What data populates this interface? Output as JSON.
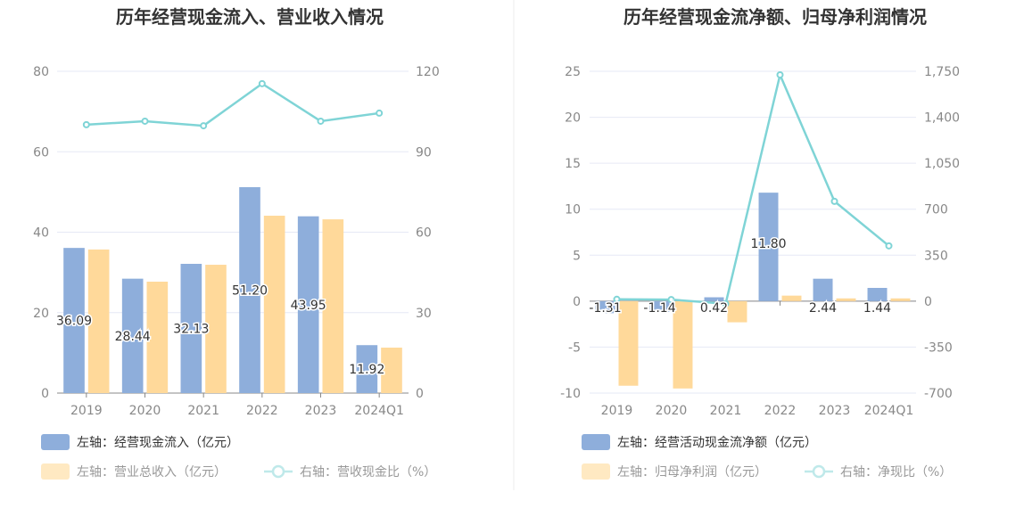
{
  "colors": {
    "bar1": "#8eaedb",
    "bar2": "#ffd99a",
    "line": "#7fd4d6",
    "grid": "#e6e9f5",
    "axis": "#888888"
  },
  "chart_data": [
    {
      "type": "bar+line",
      "title": "历年经营现金流入、营业收入情况",
      "categories": [
        "2019",
        "2020",
        "2021",
        "2022",
        "2023",
        "2024Q1"
      ],
      "yleft": {
        "range": [
          0,
          80
        ],
        "ticks": [
          "0",
          "20",
          "40",
          "60",
          "80"
        ]
      },
      "yright": {
        "range": [
          0,
          120
        ],
        "ticks": [
          "0",
          "30",
          "60",
          "90",
          "120"
        ]
      },
      "grid": true,
      "legend_placement": "bottom",
      "series": [
        {
          "name": "左轴：经营现金流入（亿元）",
          "kind": "bar",
          "axis": "left",
          "values": [
            36.09,
            28.44,
            32.13,
            51.2,
            43.95,
            11.92
          ],
          "labels": [
            "36.09",
            "28.44",
            "32.13",
            "51.20",
            "43.95",
            "11.92"
          ]
        },
        {
          "name": "左轴：营业总收入（亿元）",
          "kind": "bar",
          "axis": "left",
          "values": [
            35.7,
            27.7,
            31.9,
            44.1,
            43.2,
            11.3
          ]
        },
        {
          "name": "右轴：营收现金比（%）",
          "kind": "line",
          "axis": "right",
          "values": [
            100.1,
            101.4,
            99.7,
            115.4,
            101.4,
            104.4
          ]
        }
      ]
    },
    {
      "type": "bar+line",
      "title": "历年经营现金流净额、归母净利润情况",
      "categories": [
        "2019",
        "2020",
        "2021",
        "2022",
        "2023",
        "2024Q1"
      ],
      "yleft": {
        "range": [
          -10,
          25
        ],
        "ticks": [
          "-10",
          "-5",
          "0",
          "5",
          "10",
          "15",
          "20",
          "25"
        ]
      },
      "yright": {
        "range": [
          -700,
          1750
        ],
        "ticks": [
          "-700",
          "-350",
          "0",
          "350",
          "700",
          "1,050",
          "1,400",
          "1,750"
        ]
      },
      "grid": true,
      "legend_placement": "bottom",
      "series": [
        {
          "name": "左轴：经营活动现金流净额（亿元）",
          "kind": "bar",
          "axis": "left",
          "values": [
            -1.31,
            -1.14,
            0.42,
            11.8,
            2.44,
            1.44
          ],
          "labels": [
            "-1.31",
            "-1.14",
            "0.42",
            "11.80",
            "2.44",
            "1.44"
          ]
        },
        {
          "name": "左轴：归母净利润（亿元）",
          "kind": "bar",
          "axis": "left",
          "values": [
            -9.2,
            -9.5,
            -2.3,
            0.6,
            0.3,
            0.3
          ]
        },
        {
          "name": "右轴：净现比（%）",
          "kind": "line",
          "axis": "right",
          "values": [
            14,
            12,
            -20,
            1723,
            760,
            421
          ]
        }
      ]
    }
  ]
}
